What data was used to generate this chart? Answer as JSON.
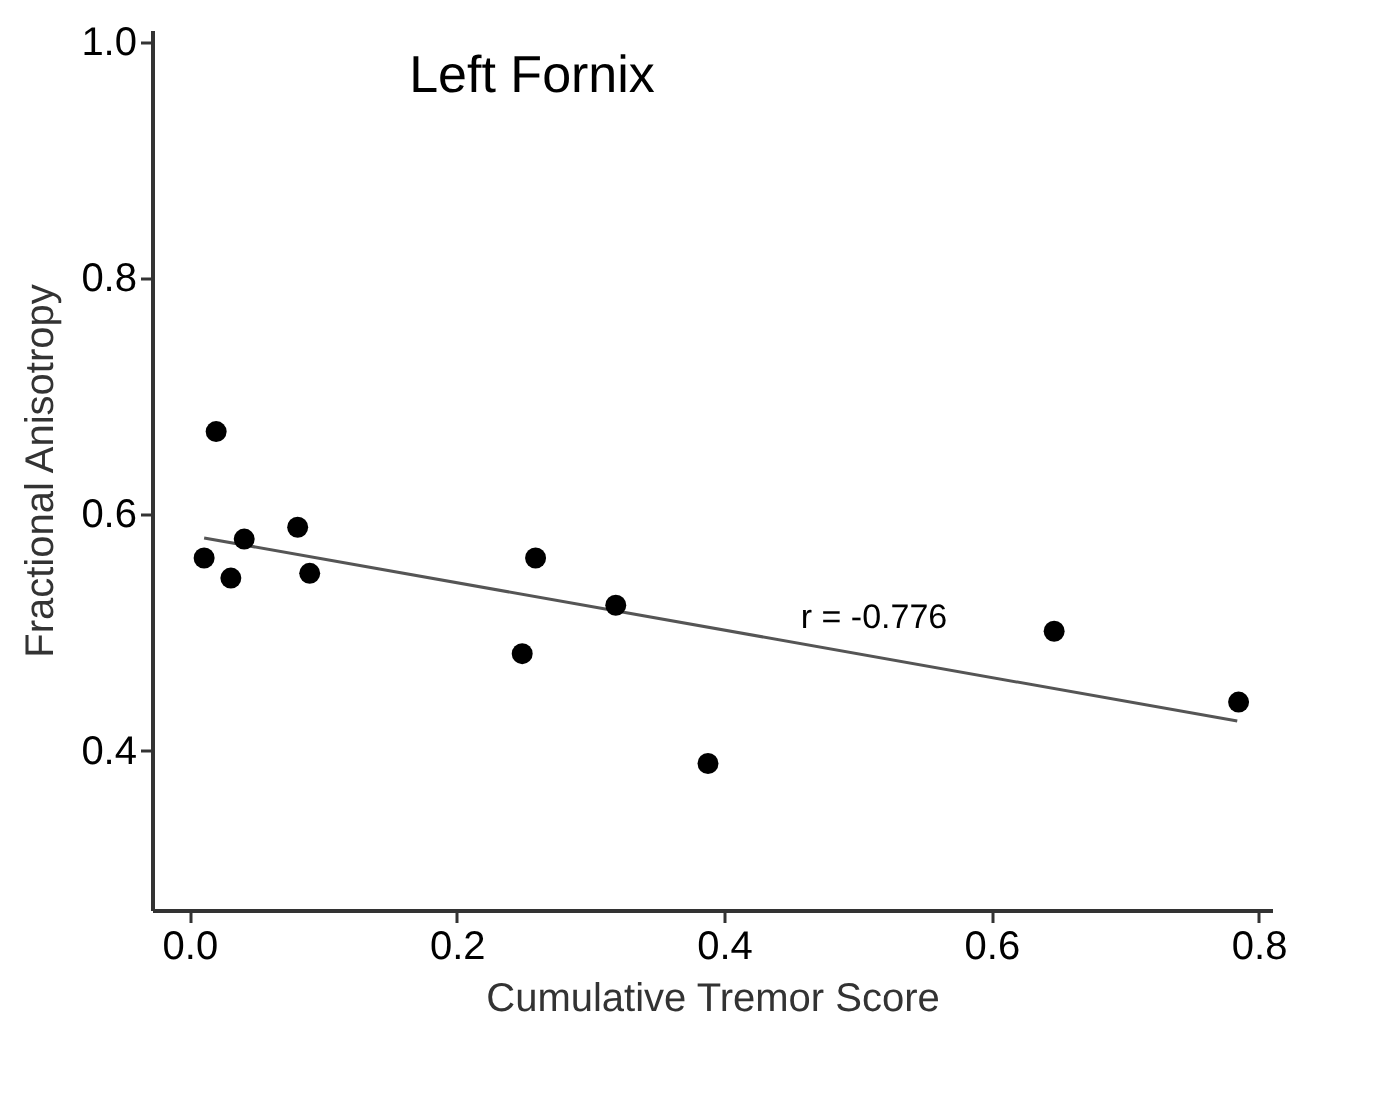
{
  "chart_data": {
    "type": "scatter",
    "title": "Left Fornix",
    "xlabel": "Cumulative Tremor Score",
    "ylabel": "Fractional Anisotropy",
    "x": [
      0.011,
      0.02,
      0.031,
      0.041,
      0.081,
      0.09,
      0.249,
      0.259,
      0.319,
      0.388,
      0.647,
      0.785
    ],
    "series": [
      {
        "color": "#000000",
        "marker": "circle",
        "values": [
          0.563,
          0.67,
          0.546,
          0.579,
          0.589,
          0.55,
          0.482,
          0.563,
          0.523,
          0.389,
          0.501,
          0.441
        ]
      },
      {
        "type": "line",
        "color": "#555555",
        "marker": "none",
        "x": [
          0.011,
          0.784
        ],
        "values": [
          0.58,
          0.425
        ]
      }
    ],
    "annotations": [
      "r = -0.776"
    ],
    "xlim": [
      -0.028,
      0.81
    ],
    "ylim": [
      0.265,
      1.01
    ],
    "xticks": [
      {
        "value": 0,
        "label": "0.0"
      },
      0.2,
      0.4,
      0.6,
      0.8
    ],
    "yticks": [
      0.4,
      0.6,
      0.8,
      {
        "value": 1,
        "label": "1.0"
      }
    ],
    "grid": false
  }
}
